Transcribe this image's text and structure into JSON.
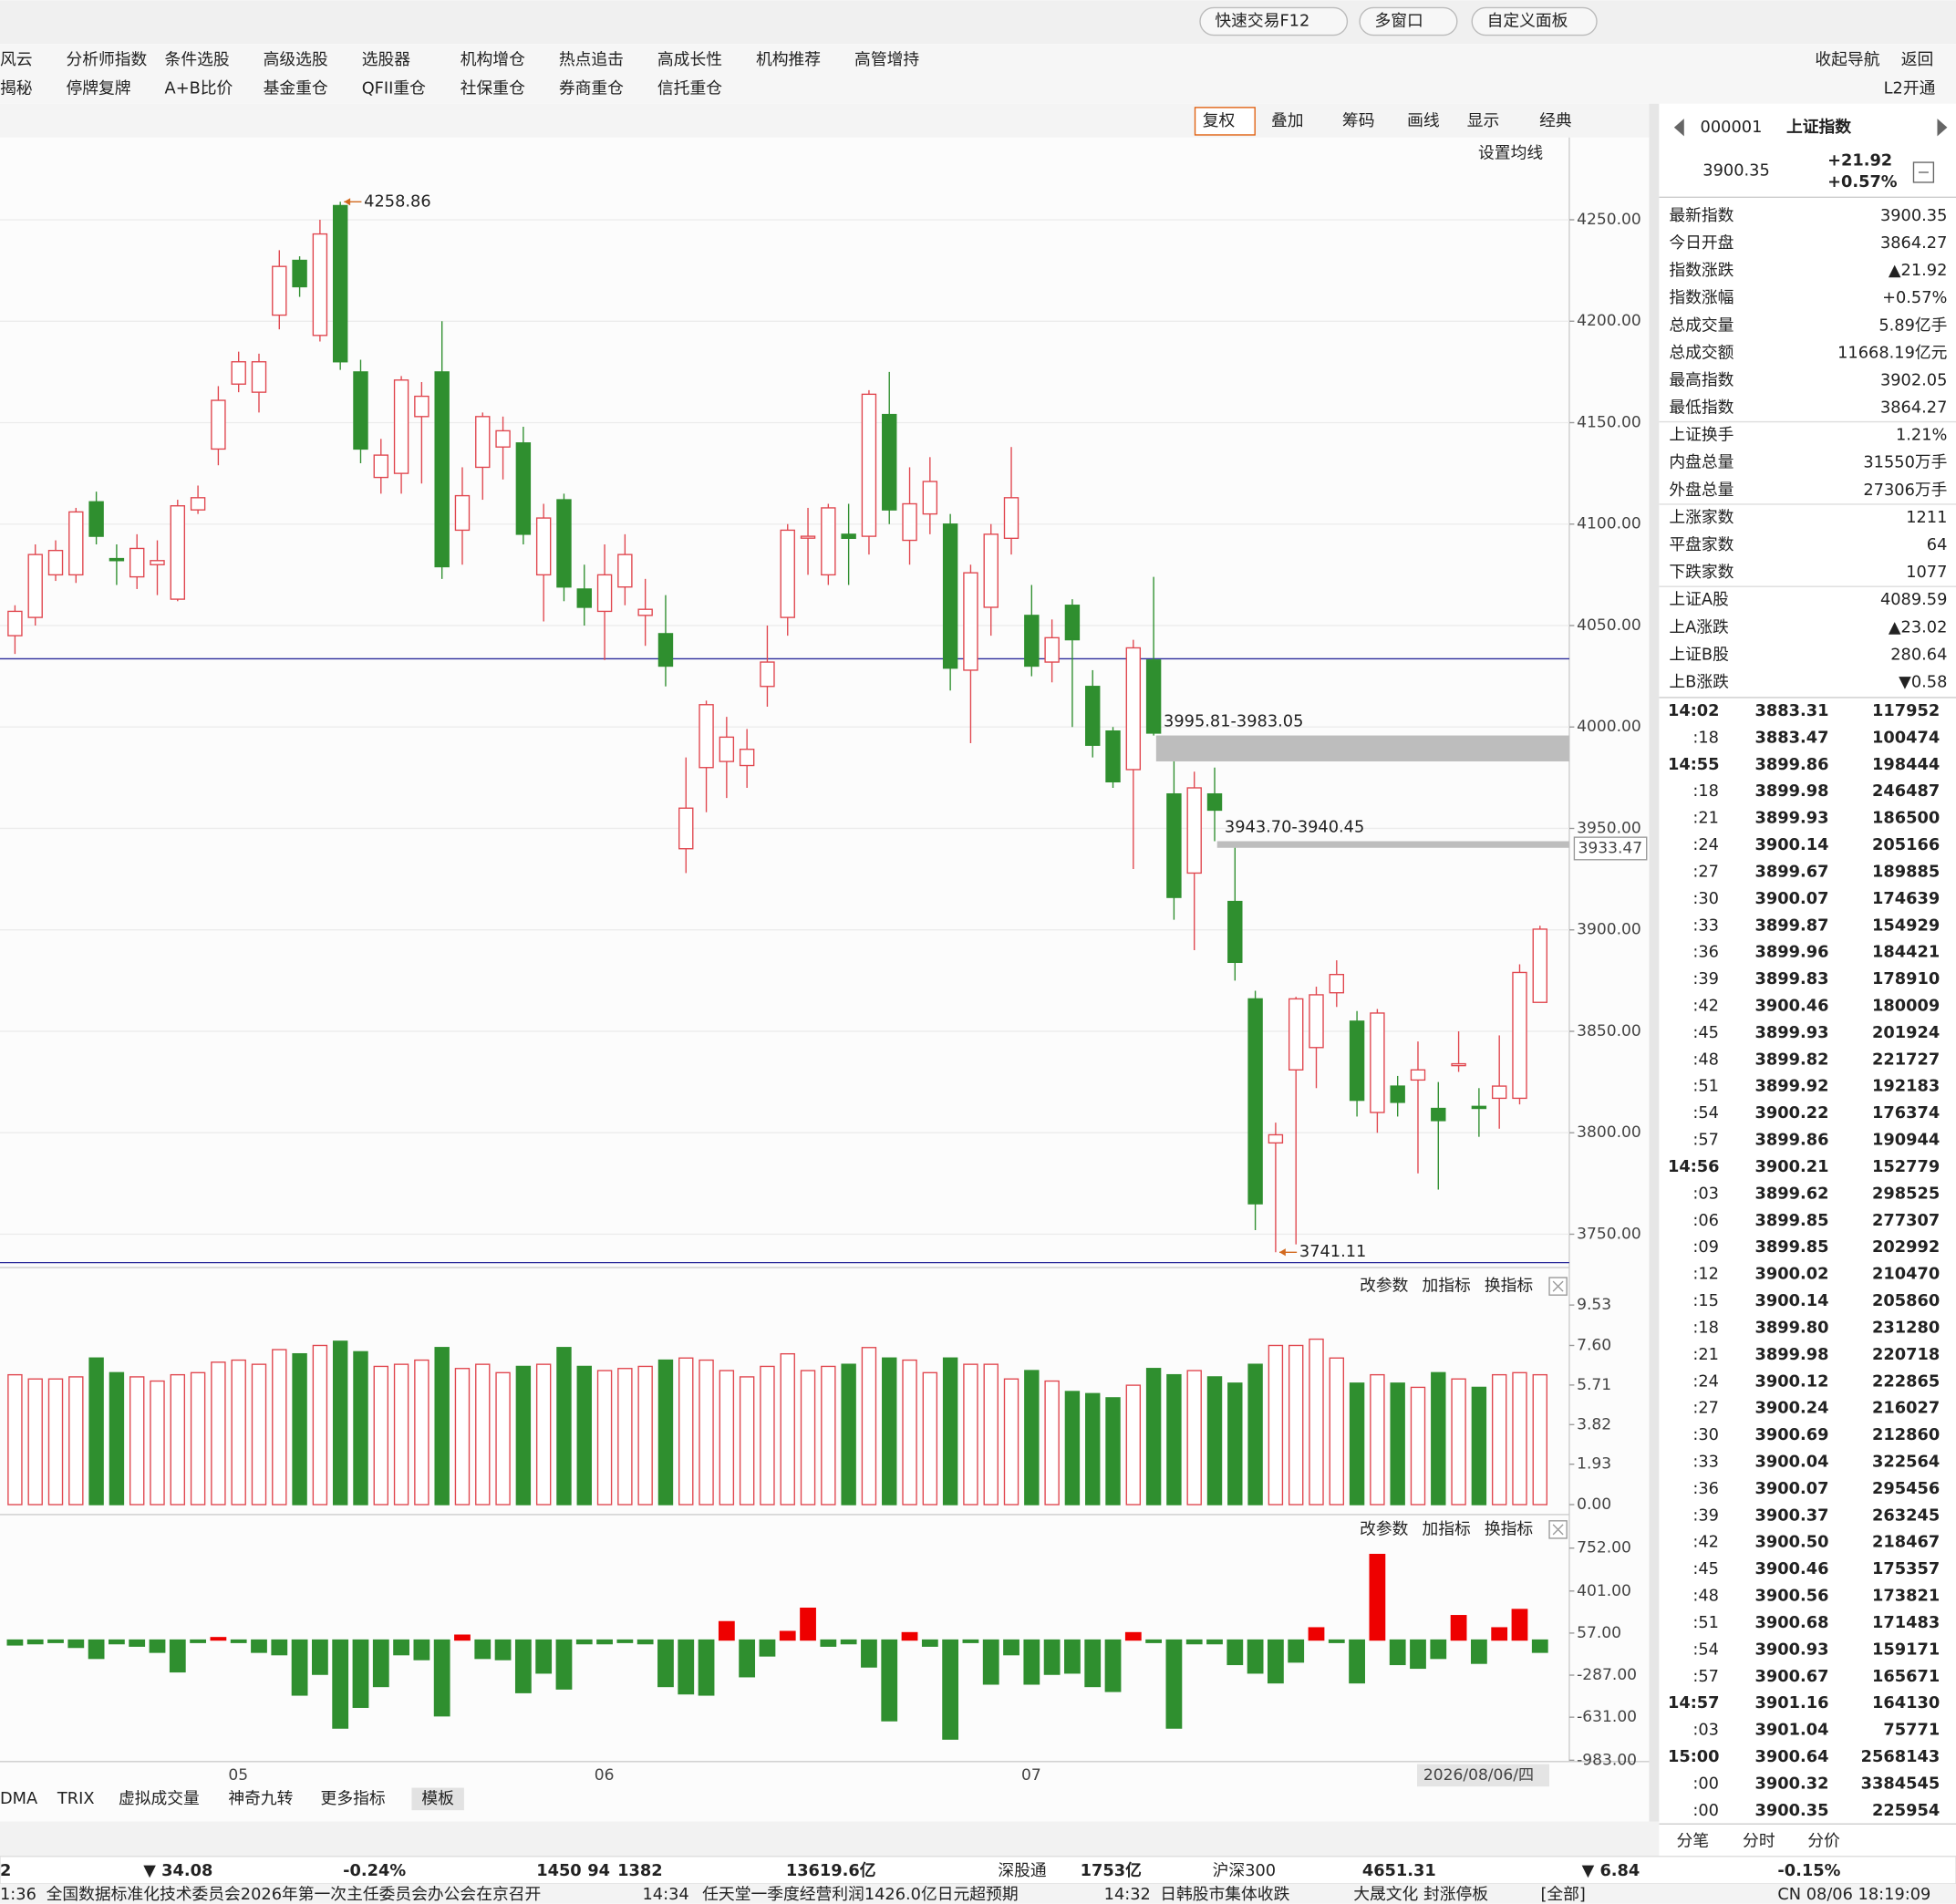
{
  "toolbar": {
    "buttons": [
      "快速交易F12",
      "多窗口",
      "自定义面板"
    ]
  },
  "menu": {
    "row1": [
      "风云",
      "分析师指数",
      "条件选股",
      "高级选股",
      "选股器",
      "机构增仓",
      "热点追击",
      "高成长性",
      "机构推荐",
      "高管增持"
    ],
    "row2": [
      "揭秘",
      "停牌复牌",
      "A+B比价",
      "基金重仓",
      "QFII重仓",
      "社保重仓",
      "券商重仓",
      "信托重仓"
    ],
    "right": [
      "收起导航",
      "返回"
    ],
    "badge": "L2开通"
  },
  "chart_toolbar": [
    "复权",
    "叠加",
    "筹码",
    "画线",
    "显示",
    "经典"
  ],
  "ma_setting": "设置均线",
  "panel_controls": [
    "改参数",
    "加指标",
    "换指标"
  ],
  "indicator_tabs": [
    "DMA",
    "TRIX",
    "虚拟成交量",
    "神奇九转",
    "更多指标",
    "模板"
  ],
  "chart_data": [
    {
      "type": "candlestick",
      "up_color": "#e0464e",
      "down_color": "#2f8f2f",
      "categories": [
        null,
        null,
        null,
        null,
        null,
        null,
        null,
        null,
        null,
        null,
        "05",
        null,
        null,
        null,
        null,
        null,
        null,
        null,
        null,
        null,
        null,
        null,
        null,
        null,
        null,
        null,
        null,
        null,
        "06",
        null,
        null,
        null,
        null,
        null,
        null,
        null,
        null,
        null,
        null,
        null,
        null,
        null,
        null,
        null,
        null,
        null,
        null,
        null,
        null,
        "07",
        null,
        null,
        null,
        null,
        null,
        null,
        null,
        null,
        null,
        null,
        null,
        null,
        null,
        null,
        null,
        null,
        null,
        null,
        null,
        null,
        null,
        null,
        null,
        null,
        null,
        null
      ],
      "open": [
        4045,
        4054,
        4075,
        4075,
        4111,
        4083,
        4074,
        4080,
        4063,
        4107,
        4137,
        4169,
        4165,
        4203,
        4230,
        4193,
        4257,
        4175,
        4123,
        4125,
        4153,
        4175,
        4097,
        4128,
        4138,
        4140,
        4075,
        4112,
        4068,
        4057,
        4069,
        4055,
        4046,
        3940,
        3980,
        3983,
        3981,
        4020,
        4054,
        4094,
        4075,
        4095,
        4094,
        4154,
        4092,
        4105,
        4100,
        4028,
        4059,
        4093,
        4055,
        4032,
        4060,
        4020,
        3998,
        3979,
        4033,
        3967,
        3928,
        3967,
        3914,
        3866,
        3795,
        3831,
        3842,
        3869,
        3855,
        3810,
        3823,
        3826,
        3812,
        3834,
        3813,
        3817,
        3817,
        3864.27
      ],
      "high": [
        4060,
        4090,
        4092,
        4108,
        4116,
        4090,
        4095,
        4092,
        4112,
        4119,
        4168,
        4185,
        4184,
        4235,
        4232,
        4250,
        4258.86,
        4181,
        4142,
        4173,
        4170,
        4200,
        4128,
        4155,
        4153,
        4148,
        4110,
        4115,
        4080,
        4090,
        4095,
        4073,
        4065,
        3985,
        4013,
        4005,
        3999,
        4050,
        4100,
        4108,
        4110,
        4110,
        4166,
        4175,
        4128,
        4133,
        4105,
        4080,
        4100,
        4138,
        4070,
        4053,
        4063,
        4028,
        4000,
        4043,
        4074,
        3983.05,
        3978,
        3980,
        3940.45,
        3870,
        3805,
        3867,
        3872,
        3885,
        3860,
        3861,
        3828,
        3845,
        3825,
        3850,
        3822,
        3848,
        3883,
        3902.05
      ],
      "low": [
        4036,
        4050,
        4072,
        4071,
        4090,
        4070,
        4068,
        4065,
        4062,
        4105,
        4129,
        4165,
        4155,
        4196,
        4212,
        4190,
        4176,
        4130,
        4115,
        4115,
        4120,
        4073,
        4080,
        4112,
        4122,
        4090,
        4052,
        4062,
        4050,
        4033,
        4060,
        4040,
        4020,
        3928,
        3958,
        3965,
        3970,
        4010,
        4045,
        4075,
        4070,
        4070,
        4085,
        4100,
        4080,
        4095,
        4018,
        3992,
        4045,
        4085,
        4025,
        4022,
        4000,
        3985,
        3970,
        3930,
        3995.81,
        3905,
        3890,
        3943.7,
        3875,
        3752,
        3741.11,
        3745,
        3822,
        3862,
        3808,
        3800,
        3808,
        3780,
        3772,
        3830,
        3798,
        3802,
        3814,
        3864.27
      ],
      "close": [
        4057,
        4085,
        4087,
        4106,
        4094,
        4082,
        4088,
        4082,
        4109,
        4113,
        4161,
        4180,
        4180,
        4227,
        4217,
        4243,
        4180,
        4137,
        4134,
        4171,
        4163,
        4079,
        4114,
        4153,
        4146,
        4095,
        4103,
        4069,
        4059,
        4075,
        4085,
        4058,
        4030,
        3960,
        4011,
        3995,
        3989,
        4032,
        4097,
        4094,
        4108,
        4093,
        4164,
        4107,
        4110,
        4121,
        4029,
        4076,
        4095,
        4113,
        4030,
        4044,
        4043,
        3991,
        3973,
        4039,
        3997,
        3916,
        3970,
        3959,
        3884,
        3765,
        3799,
        3866,
        3868,
        3878,
        3816,
        3859,
        3815,
        3831,
        3806,
        3834,
        3812,
        3823,
        3879,
        3900.35
      ],
      "ylim": [
        3736,
        4274.6
      ],
      "yticks": [
        {
          "value": 3750,
          "label": "3750.00"
        },
        {
          "value": 3800,
          "label": "3800.00"
        },
        {
          "value": 3850,
          "label": "3850.00"
        },
        {
          "value": 3900,
          "label": "3900.00"
        },
        {
          "value": 3950,
          "label": "3950.00"
        },
        {
          "value": 4000,
          "label": "4000.00"
        },
        {
          "value": 4050,
          "label": "4050.00"
        },
        {
          "value": 4100,
          "label": "4100.00"
        },
        {
          "value": 4150,
          "label": "4150.00"
        },
        {
          "value": 4200,
          "label": "4200.00"
        },
        {
          "value": 4250,
          "label": "4250.00"
        }
      ],
      "grid": true,
      "hline": 4033.6,
      "hline_color": "#2b2b9a",
      "high_label": "4258.86",
      "low_label": "3741.11",
      "annotation_color": "#d2691e",
      "gaps": [
        {
          "label": "3995.81-3983.05",
          "from": 3983.05,
          "to": 3995.81
        },
        {
          "label": "3943.70-3940.45",
          "from": 3940.45,
          "to": 3943.7
        }
      ],
      "cursor_value": "3933.47",
      "date_label": "2026/08/06/四"
    },
    {
      "type": "bar",
      "values": [
        6.2,
        6.0,
        6.0,
        6.1,
        7.0,
        6.3,
        6.1,
        5.9,
        6.2,
        6.3,
        6.8,
        6.9,
        6.7,
        7.4,
        7.2,
        7.6,
        7.8,
        7.3,
        6.6,
        6.7,
        6.9,
        7.5,
        6.5,
        6.7,
        6.3,
        6.6,
        6.7,
        7.5,
        6.6,
        6.4,
        6.5,
        6.6,
        6.9,
        7.0,
        6.9,
        6.4,
        6.1,
        6.6,
        7.2,
        6.4,
        6.6,
        6.7,
        7.5,
        7.0,
        6.9,
        6.3,
        7.0,
        6.7,
        6.7,
        6.0,
        6.4,
        5.9,
        5.4,
        5.3,
        5.1,
        5.7,
        6.5,
        6.2,
        6.4,
        6.1,
        5.8,
        6.7,
        7.6,
        7.6,
        7.9,
        7.0,
        5.8,
        6.2,
        5.8,
        5.6,
        6.3,
        6.0,
        5.6,
        6.2,
        6.3,
        6.2
      ],
      "ylim": [
        0,
        10.96
      ],
      "yticks": [
        {
          "value": 0,
          "label": "0.00"
        },
        {
          "value": 1.93,
          "label": "1.93"
        },
        {
          "value": 3.82,
          "label": "3.82"
        },
        {
          "value": 5.71,
          "label": "5.71"
        },
        {
          "value": 7.6,
          "label": "7.60"
        },
        {
          "value": 9.53,
          "label": "9.53"
        }
      ]
    },
    {
      "type": "bar",
      "up_color": "#ee0000",
      "down_color": "#2f8f2f",
      "values": [
        -40,
        -30,
        -20,
        -60,
        -150,
        -30,
        -50,
        -100,
        -260,
        -20,
        20,
        -20,
        -100,
        -120,
        -450,
        -280,
        -720,
        -550,
        -380,
        -120,
        -160,
        -620,
        40,
        -150,
        -160,
        -430,
        -270,
        -400,
        -30,
        -30,
        -20,
        -30,
        -380,
        -440,
        -450,
        150,
        -300,
        -130,
        70,
        260,
        -50,
        -30,
        -220,
        -660,
        60,
        -50,
        -810,
        -20,
        -360,
        -120,
        -360,
        -280,
        -270,
        -380,
        -420,
        60,
        -20,
        -720,
        -30,
        -30,
        -200,
        -270,
        -350,
        -180,
        100,
        -20,
        -350,
        700,
        -200,
        -230,
        -150,
        200,
        -190,
        100,
        250,
        -100
      ],
      "ylim": [
        -994,
        822
      ],
      "yticks": [
        {
          "value": -983,
          "label": "-983.00"
        },
        {
          "value": -631,
          "label": "-631.00"
        },
        {
          "value": -287,
          "label": "-287.00"
        },
        {
          "value": 57,
          "label": "57.00"
        },
        {
          "value": 401,
          "label": "401.00"
        },
        {
          "value": 752,
          "label": "752.00"
        }
      ]
    }
  ],
  "quote": {
    "code": "000001",
    "name": "上证指数",
    "price": "3900.35",
    "change": "+21.92",
    "change_pct": "+0.57%",
    "rows": [
      {
        "label": "最新指数",
        "value": "3900.35",
        "color": "#e00000"
      },
      {
        "label": "今日开盘",
        "value": "3864.27",
        "color": "#008000"
      },
      {
        "label": "指数涨跌",
        "value": "▲21.92",
        "color": "#e00000"
      },
      {
        "label": "指数涨幅",
        "value": "+0.57%",
        "color": "#e00000"
      },
      {
        "label": "总成交量",
        "value": "5.89亿手",
        "color": "#222222"
      },
      {
        "label": "总成交额",
        "value": "11668.19亿元",
        "color": "#1a6fc2"
      },
      {
        "label": "最高指数",
        "value": "3902.05",
        "color": "#e00000"
      },
      {
        "label": "最低指数",
        "value": "3864.27",
        "color": "#008000"
      },
      {
        "label": "上证换手",
        "value": "1.21%",
        "color": "#222222"
      },
      {
        "label": "内盘总量",
        "value": "31550万手",
        "color": "#008000"
      },
      {
        "label": "外盘总量",
        "value": "27306万手",
        "color": "#e00000"
      },
      {
        "label": "上涨家数",
        "value": "1211",
        "color": "#e00000"
      },
      {
        "label": "平盘家数",
        "value": "64",
        "color": "#222222"
      },
      {
        "label": "下跌家数",
        "value": "1077",
        "color": "#008000"
      },
      {
        "label": "上证A股",
        "value": "4089.59",
        "color": "#e00000"
      },
      {
        "label": "上A涨跌",
        "value": "▲23.02",
        "color": "#e00000"
      },
      {
        "label": "上证B股",
        "value": "280.64",
        "color": "#008000"
      },
      {
        "label": "上B涨跌",
        "value": "▼0.58",
        "color": "#008000"
      }
    ]
  },
  "ticks": {
    "price_color": "#e00000",
    "rows": [
      {
        "time": "14:02",
        "price": "3883.31",
        "volume": "117952",
        "color": "#008000"
      },
      {
        "time": ":18",
        "price": "3883.47",
        "volume": "100474",
        "color": "#e00000"
      },
      {
        "time": "14:55",
        "price": "3899.86",
        "volume": "198444",
        "color": "#008000"
      },
      {
        "time": ":18",
        "price": "3899.98",
        "volume": "246487",
        "color": "#e00000"
      },
      {
        "time": ":21",
        "price": "3899.93",
        "volume": "186500",
        "color": "#008000"
      },
      {
        "time": ":24",
        "price": "3900.14",
        "volume": "205166",
        "color": "#e00000"
      },
      {
        "time": ":27",
        "price": "3899.67",
        "volume": "189885",
        "color": "#e00000"
      },
      {
        "time": ":30",
        "price": "3900.07",
        "volume": "174639",
        "color": "#e00000"
      },
      {
        "time": ":33",
        "price": "3899.87",
        "volume": "154929",
        "color": "#008000"
      },
      {
        "time": ":36",
        "price": "3899.96",
        "volume": "184421",
        "color": "#e00000"
      },
      {
        "time": ":39",
        "price": "3899.83",
        "volume": "178910",
        "color": "#008000"
      },
      {
        "time": ":42",
        "price": "3900.46",
        "volume": "180009",
        "color": "#e00000"
      },
      {
        "time": ":45",
        "price": "3899.93",
        "volume": "201924",
        "color": "#008000"
      },
      {
        "time": ":48",
        "price": "3899.82",
        "volume": "221727",
        "color": "#e00000"
      },
      {
        "time": ":51",
        "price": "3899.92",
        "volume": "192183",
        "color": "#e00000"
      },
      {
        "time": ":54",
        "price": "3900.22",
        "volume": "176374",
        "color": "#e00000"
      },
      {
        "time": ":57",
        "price": "3899.86",
        "volume": "190944",
        "color": "#008000"
      },
      {
        "time": "14:56",
        "price": "3900.21",
        "volume": "152779",
        "color": "#008000"
      },
      {
        "time": ":03",
        "price": "3899.62",
        "volume": "298525",
        "color": "#008000"
      },
      {
        "time": ":06",
        "price": "3899.85",
        "volume": "277307",
        "color": "#e00000"
      },
      {
        "time": ":09",
        "price": "3899.85",
        "volume": "202992",
        "color": "#e00000"
      },
      {
        "time": ":12",
        "price": "3900.02",
        "volume": "210470",
        "color": "#e00000"
      },
      {
        "time": ":15",
        "price": "3900.14",
        "volume": "205860",
        "color": "#e00000"
      },
      {
        "time": ":18",
        "price": "3899.80",
        "volume": "231280",
        "color": "#008000"
      },
      {
        "time": ":21",
        "price": "3899.98",
        "volume": "220718",
        "color": "#e00000"
      },
      {
        "time": ":24",
        "price": "3900.12",
        "volume": "222865",
        "color": "#e00000"
      },
      {
        "time": ":27",
        "price": "3900.24",
        "volume": "216027",
        "color": "#e00000"
      },
      {
        "time": ":30",
        "price": "3900.69",
        "volume": "212860",
        "color": "#e00000"
      },
      {
        "time": ":33",
        "price": "3900.04",
        "volume": "322564",
        "color": "#008000"
      },
      {
        "time": ":36",
        "price": "3900.07",
        "volume": "295456",
        "color": "#e00000"
      },
      {
        "time": ":39",
        "price": "3900.37",
        "volume": "263245",
        "color": "#e00000"
      },
      {
        "time": ":42",
        "price": "3900.50",
        "volume": "218467",
        "color": "#e00000"
      },
      {
        "time": ":45",
        "price": "3900.46",
        "volume": "175357",
        "color": "#008000"
      },
      {
        "time": ":48",
        "price": "3900.56",
        "volume": "173821",
        "color": "#e00000"
      },
      {
        "time": ":51",
        "price": "3900.68",
        "volume": "171483",
        "color": "#e00000"
      },
      {
        "time": ":54",
        "price": "3900.93",
        "volume": "159171",
        "color": "#e00000"
      },
      {
        "time": ":57",
        "price": "3900.67",
        "volume": "165671",
        "color": "#e00000"
      },
      {
        "time": "14:57",
        "price": "3901.16",
        "volume": "164130",
        "color": "#e00000"
      },
      {
        "time": ":03",
        "price": "3901.04",
        "volume": "75771",
        "color": "#e00000"
      },
      {
        "time": "15:00",
        "price": "3900.64",
        "volume": "2568143",
        "color": "#008000"
      },
      {
        "time": ":00",
        "price": "3900.32",
        "volume": "3384545",
        "color": "#e00000"
      },
      {
        "time": ":00",
        "price": "3900.35",
        "volume": "225954",
        "color": "#e00000"
      }
    ]
  },
  "panel_tabs": [
    "分笔",
    "分时",
    "分价"
  ],
  "status": [
    {
      "text": "2",
      "color": "#222222"
    },
    {
      "text": "▼ 34.08",
      "color": "#008000"
    },
    {
      "text": "-0.24%",
      "color": "#008000"
    },
    {
      "text": "1450",
      "color": "#e00000"
    },
    {
      "text": "94",
      "color": "#222222"
    },
    {
      "text": "1382",
      "color": "#008000"
    },
    {
      "text": "13619.6亿",
      "color": "#1a6fc2"
    },
    {
      "text": "深股通",
      "color": "#222222"
    },
    {
      "text": "1753亿",
      "color": "#1a6fc2"
    },
    {
      "text": "沪深300",
      "color": "#222222"
    },
    {
      "text": "4651.31",
      "color": "#008000"
    },
    {
      "text": "▼ 6.84",
      "color": "#008000"
    },
    {
      "text": "-0.15%",
      "color": "#008000"
    }
  ],
  "ticker": [
    {
      "text": "1:36",
      "color": "#222222"
    },
    {
      "text": "全国数据标准化技术委员会2026年第一次主任委员会办公会在京召开",
      "color": "#222222"
    },
    {
      "text": "14:34",
      "color": "#222222"
    },
    {
      "text": "任天堂一季度经营利润1426.0亿日元超预期",
      "color": "#222222"
    },
    {
      "text": "14:32",
      "color": "#222222"
    },
    {
      "text": "日韩股市集体收跌",
      "color": "#222222"
    },
    {
      "text": "大晟文化 封涨停板",
      "color": "#e00000"
    },
    {
      "text": "[全部]",
      "color": "#222222"
    },
    {
      "text": "CN 08/06 18:19:09",
      "color": "#222222"
    }
  ]
}
